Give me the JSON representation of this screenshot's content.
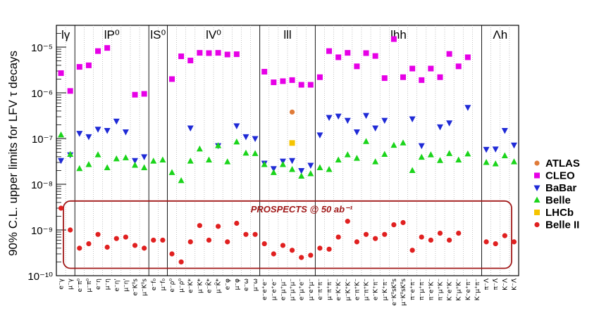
{
  "chart_data": {
    "type": "scatter",
    "ylabel": "90% C.L. upper limits for LFV τ decays",
    "yscale": "log",
    "ylim": [
      1e-10,
      3e-05
    ],
    "y_tick_labels": [
      "10⁻¹⁰",
      "10⁻⁹",
      "10⁻⁸",
      "10⁻⁷",
      "10⁻⁶",
      "10⁻⁵"
    ],
    "grid": "vertical dotted between categories",
    "legend_position": "right",
    "groups": [
      {
        "label": "lγ",
        "start": 0,
        "end": 1
      },
      {
        "label": "lP⁰",
        "start": 2,
        "end": 9
      },
      {
        "label": "lS⁰",
        "start": 10,
        "end": 11
      },
      {
        "label": "lV⁰",
        "start": 12,
        "end": 21
      },
      {
        "label": "lll",
        "start": 22,
        "end": 27
      },
      {
        "label": "lhh",
        "start": 28,
        "end": 45
      },
      {
        "label": "Λh",
        "start": 46,
        "end": 49
      }
    ],
    "categories": [
      "e⁻γ",
      "μ⁻γ",
      "e⁻π⁰",
      "μ⁻π⁰",
      "e⁻η",
      "μ⁻η",
      "e⁻η'",
      "μ⁻η'",
      "e⁻K⁰s",
      "μ⁻K⁰s",
      "e⁻f₀",
      "μ⁻f₀",
      "e⁻ρ⁰",
      "μ⁻ρ⁰",
      "e⁻K*",
      "μ⁻K*",
      "e⁻K̄*",
      "μ⁻K̄*",
      "e⁻φ",
      "μ⁻φ",
      "e⁻ω",
      "μ⁻ω",
      "e⁻e⁺e⁻",
      "μ⁻e⁺e⁻",
      "e⁻μ⁺μ⁻",
      "μ⁻μ⁺μ⁻",
      "e⁻μ⁺e⁻",
      "μ⁻e⁺μ⁻",
      "e⁻π⁺π⁻",
      "μ⁻π⁺π⁻",
      "e⁻K⁺K⁻",
      "μ⁻K⁺K⁻",
      "e⁻π⁺K⁻",
      "μ⁻π⁺K⁻",
      "e⁻K⁺π⁻",
      "μ⁻K⁺π⁻",
      "e⁻K⁰sK⁰s",
      "μ⁻K⁰sK⁰s",
      "π⁻e⁺π⁻",
      "π⁻μ⁺π⁻",
      "π⁻e⁺K⁻",
      "π⁻μ⁺K⁻",
      "K⁻e⁺K⁻",
      "K⁻μ⁺K⁻",
      "K⁻e⁺π⁻",
      "K⁻μ⁺π⁻",
      "π⁻Λ",
      "π⁻Λ̄",
      "K⁻Λ",
      "K⁻Λ̄"
    ],
    "series": [
      {
        "name": "ATLAS",
        "color": "#e07b39",
        "marker": "circle",
        "points": [
          [
            25,
            3.8e-07
          ]
        ]
      },
      {
        "name": "CLEO",
        "color": "#e600e6",
        "marker": "square",
        "points": [
          [
            0,
            2.7e-06
          ],
          [
            1,
            1.1e-06
          ],
          [
            2,
            3.7e-06
          ],
          [
            3,
            4e-06
          ],
          [
            4,
            8.2e-06
          ],
          [
            5,
            9.6e-06
          ],
          [
            8,
            9.1e-07
          ],
          [
            9,
            9.5e-07
          ],
          [
            12,
            2e-06
          ],
          [
            13,
            6.3e-06
          ],
          [
            14,
            5.1e-06
          ],
          [
            15,
            7.5e-06
          ],
          [
            16,
            7.4e-06
          ],
          [
            17,
            7.5e-06
          ],
          [
            18,
            6.9e-06
          ],
          [
            19,
            7e-06
          ],
          [
            22,
            2.9e-06
          ],
          [
            23,
            1.7e-06
          ],
          [
            24,
            1.8e-06
          ],
          [
            25,
            1.9e-06
          ],
          [
            26,
            1.5e-06
          ],
          [
            27,
            1.5e-06
          ],
          [
            28,
            2.2e-06
          ],
          [
            29,
            8.2e-06
          ],
          [
            30,
            6e-06
          ],
          [
            31,
            7.5e-06
          ],
          [
            32,
            3.8e-06
          ],
          [
            33,
            7.4e-06
          ],
          [
            34,
            6.4e-06
          ],
          [
            35,
            2.1e-06
          ],
          [
            36,
            1.5e-05
          ],
          [
            37,
            2.2e-06
          ],
          [
            38,
            3.4e-06
          ],
          [
            39,
            1.9e-06
          ],
          [
            40,
            3.4e-06
          ],
          [
            41,
            2.2e-06
          ],
          [
            42,
            7.1e-06
          ],
          [
            43,
            3.8e-06
          ],
          [
            44,
            6e-06
          ]
        ]
      },
      {
        "name": "BaBar",
        "color": "#1f2ad6",
        "marker": "triangle-down",
        "points": [
          [
            0,
            3.3e-08
          ],
          [
            1,
            4.4e-08
          ],
          [
            2,
            1.3e-07
          ],
          [
            3,
            1.1e-07
          ],
          [
            4,
            1.6e-07
          ],
          [
            5,
            1.5e-07
          ],
          [
            6,
            2.4e-07
          ],
          [
            7,
            1.4e-07
          ],
          [
            8,
            3.3e-08
          ],
          [
            9,
            4e-08
          ],
          [
            14,
            1.7e-07
          ],
          [
            17,
            7e-08
          ],
          [
            19,
            1.9e-07
          ],
          [
            20,
            1.1e-07
          ],
          [
            21,
            1e-07
          ],
          [
            22,
            2.9e-08
          ],
          [
            23,
            2.2e-08
          ],
          [
            24,
            3.2e-08
          ],
          [
            25,
            3.3e-08
          ],
          [
            26,
            2e-08
          ],
          [
            27,
            2.6e-08
          ],
          [
            28,
            1.2e-07
          ],
          [
            29,
            2.9e-07
          ],
          [
            30,
            3.1e-07
          ],
          [
            31,
            2.5e-07
          ],
          [
            32,
            1.4e-07
          ],
          [
            33,
            3.2e-07
          ],
          [
            34,
            1.7e-07
          ],
          [
            35,
            2.5e-07
          ],
          [
            38,
            2.7e-07
          ],
          [
            39,
            7e-08
          ],
          [
            41,
            1.8e-07
          ],
          [
            42,
            2.2e-07
          ],
          [
            44,
            4.8e-07
          ],
          [
            46,
            5.8e-08
          ],
          [
            47,
            5.9e-08
          ],
          [
            48,
            1.5e-07
          ],
          [
            49,
            7.2e-08
          ]
        ]
      },
      {
        "name": "Belle",
        "color": "#1bd41b",
        "marker": "triangle-up",
        "points": [
          [
            0,
            1.2e-07
          ],
          [
            1,
            4.5e-08
          ],
          [
            2,
            2.2e-08
          ],
          [
            3,
            2.7e-08
          ],
          [
            4,
            4.4e-08
          ],
          [
            5,
            2.3e-08
          ],
          [
            6,
            3.6e-08
          ],
          [
            7,
            3.8e-08
          ],
          [
            8,
            2.6e-08
          ],
          [
            9,
            2.3e-08
          ],
          [
            10,
            3.2e-08
          ],
          [
            11,
            3.4e-08
          ],
          [
            12,
            1.8e-08
          ],
          [
            13,
            1.2e-08
          ],
          [
            14,
            3.2e-08
          ],
          [
            15,
            5.9e-08
          ],
          [
            16,
            3.4e-08
          ],
          [
            17,
            7e-08
          ],
          [
            18,
            3.1e-08
          ],
          [
            19,
            8.4e-08
          ],
          [
            20,
            4.8e-08
          ],
          [
            21,
            4.7e-08
          ],
          [
            22,
            2.7e-08
          ],
          [
            23,
            1.8e-08
          ],
          [
            24,
            2.7e-08
          ],
          [
            25,
            2.1e-08
          ],
          [
            26,
            1.5e-08
          ],
          [
            27,
            1.7e-08
          ],
          [
            28,
            2.3e-08
          ],
          [
            29,
            2.1e-08
          ],
          [
            30,
            3.4e-08
          ],
          [
            31,
            4.4e-08
          ],
          [
            32,
            3.7e-08
          ],
          [
            33,
            8.6e-08
          ],
          [
            34,
            3.1e-08
          ],
          [
            35,
            4.5e-08
          ],
          [
            36,
            7.1e-08
          ],
          [
            37,
            8e-08
          ],
          [
            38,
            2e-08
          ],
          [
            39,
            3.9e-08
          ],
          [
            40,
            4.4e-08
          ],
          [
            41,
            3.3e-08
          ],
          [
            42,
            4.7e-08
          ],
          [
            43,
            3.4e-08
          ],
          [
            44,
            4.6e-08
          ],
          [
            46,
            3e-08
          ],
          [
            47,
            2.8e-08
          ],
          [
            48,
            4.2e-08
          ],
          [
            49,
            3.1e-08
          ]
        ]
      },
      {
        "name": "LHCb",
        "color": "#f5c400",
        "marker": "square",
        "points": [
          [
            25,
            8e-08
          ]
        ]
      },
      {
        "name": "Belle II",
        "color": "#e02020",
        "marker": "circle",
        "points": [
          [
            0,
            3e-09
          ],
          [
            1,
            1e-09
          ],
          [
            2,
            4e-10
          ],
          [
            3,
            5e-10
          ],
          [
            4,
            8e-10
          ],
          [
            5,
            4.2e-10
          ],
          [
            6,
            6.5e-10
          ],
          [
            7,
            7e-10
          ],
          [
            8,
            4.6e-10
          ],
          [
            9,
            4e-10
          ],
          [
            10,
            6e-10
          ],
          [
            11,
            6e-10
          ],
          [
            12,
            3e-10
          ],
          [
            13,
            2e-10
          ],
          [
            14,
            5.5e-10
          ],
          [
            15,
            1.25e-09
          ],
          [
            16,
            6e-10
          ],
          [
            17,
            1.2e-09
          ],
          [
            18,
            5.5e-10
          ],
          [
            19,
            1.4e-09
          ],
          [
            20,
            8e-10
          ],
          [
            21,
            8e-10
          ],
          [
            22,
            5e-10
          ],
          [
            23,
            3e-10
          ],
          [
            24,
            4.6e-10
          ],
          [
            25,
            3.6e-10
          ],
          [
            26,
            2.5e-10
          ],
          [
            27,
            2.8e-10
          ],
          [
            28,
            4e-10
          ],
          [
            29,
            3.8e-10
          ],
          [
            30,
            7e-10
          ],
          [
            31,
            1.55e-09
          ],
          [
            32,
            5.5e-10
          ],
          [
            33,
            8e-10
          ],
          [
            34,
            6.5e-10
          ],
          [
            35,
            8e-10
          ],
          [
            36,
            1.3e-09
          ],
          [
            37,
            1.45e-09
          ],
          [
            38,
            3.6e-10
          ],
          [
            39,
            7e-10
          ],
          [
            40,
            6e-10
          ],
          [
            41,
            8.5e-10
          ],
          [
            42,
            6e-10
          ],
          [
            43,
            8.5e-10
          ],
          [
            46,
            5.5e-10
          ],
          [
            47,
            5e-10
          ],
          [
            48,
            7.5e-10
          ],
          [
            49,
            5.5e-10
          ]
        ]
      }
    ],
    "annotation": {
      "text": "PROSPECTS @ 50 ab⁻¹",
      "color": "#a01818"
    }
  }
}
